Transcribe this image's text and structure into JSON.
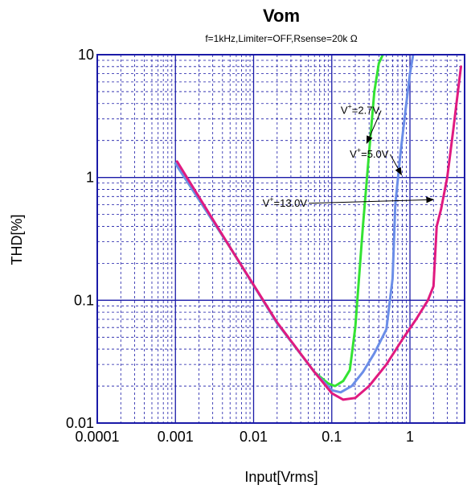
{
  "chart_data": {
    "type": "line",
    "title": "Vom",
    "subtitle": "f=1kHz,Limiter=OFF,Rsense=20k Ω",
    "xlabel": "Input[Vrms]",
    "ylabel": "THD[%]",
    "x_scale": "log",
    "y_scale": "log",
    "xlim": [
      0.0001,
      5
    ],
    "ylim": [
      0.01,
      10
    ],
    "grid": true,
    "x_tick_labels": [
      "0.0001",
      "0.001",
      "0.01",
      "0.1",
      "1"
    ],
    "x_tick_values": [
      0.0001,
      0.001,
      0.01,
      0.1,
      1
    ],
    "y_tick_labels": [
      "0.01",
      "0.1",
      "1",
      "10"
    ],
    "y_tick_values": [
      0.01,
      0.1,
      1,
      10
    ],
    "colors": {
      "grid": "#1a1aa8",
      "axes": "#1a1aa8",
      "text": "#000000"
    },
    "series": [
      {
        "color": "#33e333",
        "x": [
          0.001,
          0.005,
          0.02,
          0.06,
          0.09,
          0.11,
          0.14,
          0.17,
          0.2,
          0.25,
          0.3,
          0.35,
          0.4,
          0.45
        ],
        "y": [
          1.3,
          0.27,
          0.065,
          0.026,
          0.021,
          0.02,
          0.022,
          0.027,
          0.06,
          0.4,
          1.6,
          5.0,
          8.5,
          10
        ]
      },
      {
        "color": "#6b8ee8",
        "x": [
          0.001,
          0.005,
          0.02,
          0.06,
          0.1,
          0.13,
          0.18,
          0.25,
          0.35,
          0.5,
          0.6,
          0.65,
          0.75,
          0.85,
          1.0,
          1.1
        ],
        "y": [
          1.3,
          0.27,
          0.065,
          0.026,
          0.0185,
          0.0178,
          0.02,
          0.026,
          0.037,
          0.058,
          0.15,
          0.6,
          1.5,
          3.0,
          7.0,
          10
        ]
      },
      {
        "color": "#e01a80",
        "x": [
          0.00105,
          0.005,
          0.02,
          0.06,
          0.1,
          0.14,
          0.2,
          0.3,
          0.5,
          0.8,
          1.2,
          1.7,
          2.0,
          2.2,
          2.5,
          3.0,
          3.6,
          4.5
        ],
        "y": [
          1.35,
          0.27,
          0.066,
          0.026,
          0.0175,
          0.0155,
          0.016,
          0.02,
          0.03,
          0.048,
          0.07,
          0.1,
          0.13,
          0.4,
          0.55,
          1.0,
          2.5,
          8.0
        ]
      }
    ],
    "annotations": [
      {
        "label_base": "V",
        "label_sup": "+",
        "label_rest": "=2.7V",
        "label_x": 0.13,
        "label_y": 3.3,
        "arrow_to_x": 0.28,
        "arrow_to_y": 1.9
      },
      {
        "label_base": "V",
        "label_sup": "+",
        "label_rest": "=5.0V",
        "label_x": 0.17,
        "label_y": 1.45,
        "arrow_to_x": 0.78,
        "arrow_to_y": 1.05
      },
      {
        "label_base": "V",
        "label_sup": "+",
        "label_rest": "=13.0V",
        "label_x": 0.013,
        "label_y": 0.58,
        "arrow_to_x": 2.0,
        "arrow_to_y": 0.66
      }
    ]
  }
}
